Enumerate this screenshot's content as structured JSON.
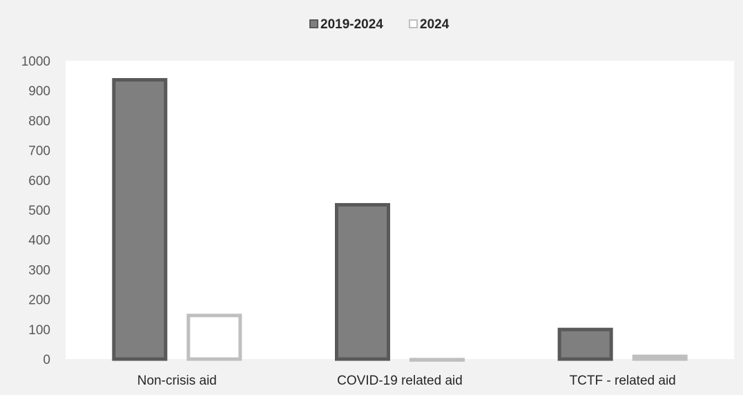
{
  "chart_data": {
    "type": "bar",
    "categories": [
      "Non-crisis aid",
      "COVID-19 related aid",
      "TCTF - related aid"
    ],
    "series": [
      {
        "name": "2019-2024",
        "values": [
          942,
          523,
          105
        ],
        "fill": "#7f7f7f",
        "stroke": "#595959"
      },
      {
        "name": "2024",
        "values": [
          152,
          4,
          15
        ],
        "fill": "#ffffff",
        "stroke": "#bfbfbf"
      }
    ],
    "ylim": [
      0,
      1000
    ],
    "yticks": [
      "0",
      "100",
      "200",
      "300",
      "400",
      "500",
      "600",
      "700",
      "800",
      "900",
      "1000"
    ],
    "legend": "top-center",
    "grid": false,
    "title": "",
    "xlabel": "",
    "ylabel": ""
  },
  "colors": {
    "frame_background": "#f2f2f2",
    "plot_background": "#ffffff"
  }
}
